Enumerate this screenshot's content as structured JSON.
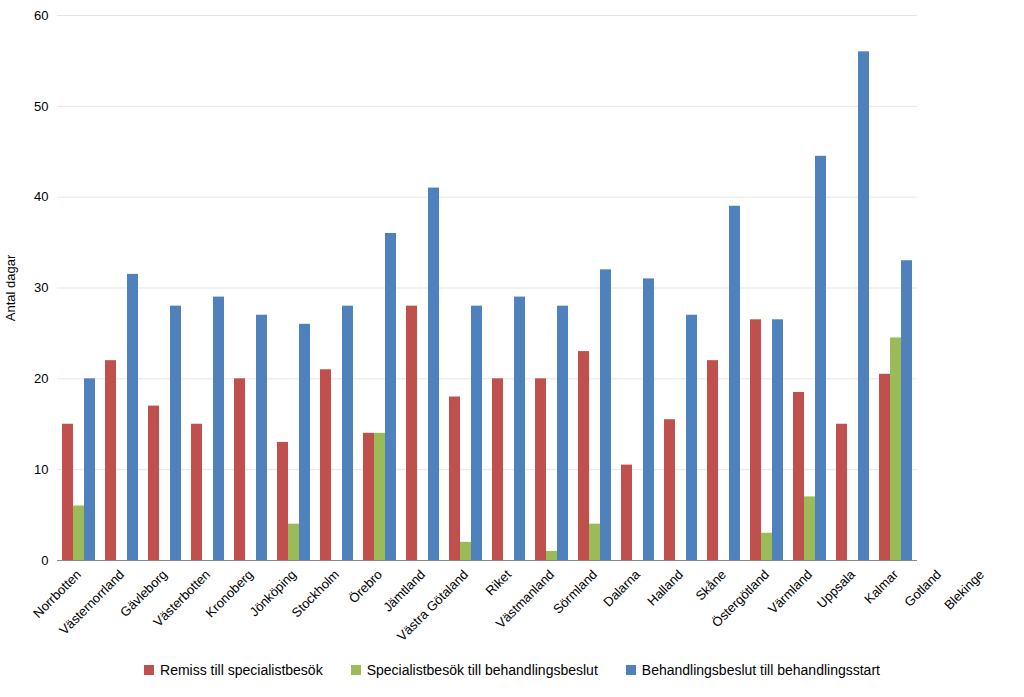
{
  "chart_data": {
    "type": "bar",
    "y_label": "Antal dagar",
    "categories": [
      "Norrbotten",
      "Västernorrland",
      "Gävleborg",
      "Västerbotten",
      "Kronoberg",
      "Jönköping",
      "Stockholm",
      "Örebro",
      "Jämtland",
      "Västra Götaland",
      "Riket",
      "Västmanland",
      "Sörmland",
      "Dalarna",
      "Halland",
      "Skåne",
      "Östergötland",
      "Värmland",
      "Uppsala",
      "Kalmar",
      "Gotland",
      "Blekinge"
    ],
    "series": [
      {
        "name": "Remiss till specialistbesök",
        "color": "#C0504D",
        "values": [
          15,
          22,
          17,
          15,
          20,
          13,
          21,
          14,
          28,
          18,
          20,
          20,
          23,
          10.5,
          15.5,
          22,
          26.5,
          18.5,
          15,
          20.5,
          null,
          null
        ]
      },
      {
        "name": "Specialistbesök till behandlingsbeslut",
        "color": "#9BBB59",
        "values": [
          6,
          null,
          null,
          null,
          null,
          4,
          null,
          14,
          null,
          2,
          null,
          1,
          4,
          null,
          null,
          null,
          3,
          7,
          null,
          24.5,
          null,
          null
        ]
      },
      {
        "name": "Behandlingsbeslut till behandlingsstart",
        "color": "#4F81BD",
        "values": [
          20,
          31.5,
          28,
          29,
          27,
          26,
          28,
          36,
          41,
          28,
          29,
          28,
          32,
          31,
          27,
          39,
          26.5,
          44.5,
          56,
          33,
          null,
          null
        ]
      }
    ],
    "ylim": [
      0,
      60
    ],
    "yticks": [
      0,
      10,
      20,
      30,
      40,
      50,
      60
    ],
    "grid": true,
    "legend": "bottom"
  }
}
